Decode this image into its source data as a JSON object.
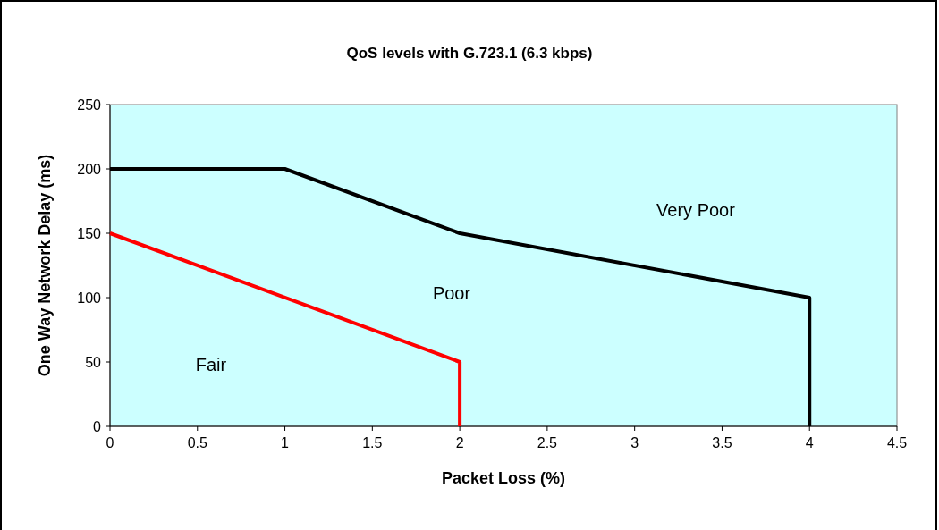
{
  "chart_data": {
    "type": "line",
    "title": "QoS levels with G.723.1 (6.3 kbps)",
    "xlabel": "Packet Loss (%)",
    "ylabel": "One Way Network Delay (ms)",
    "series": [
      {
        "color": "#000000",
        "x": [
          0,
          1,
          2,
          4,
          4
        ],
        "values": [
          200,
          200,
          150,
          100,
          0
        ]
      },
      {
        "color": "#ff0000",
        "x": [
          0,
          2,
          2
        ],
        "values": [
          150,
          50,
          0
        ]
      }
    ],
    "xlim": [
      0,
      4.5
    ],
    "xticks": [
      0,
      0.5,
      1,
      1.5,
      2,
      2.5,
      3,
      3.5,
      4,
      4.5
    ],
    "ylim": [
      0,
      250
    ],
    "yticks": [
      0,
      50,
      100,
      150,
      200,
      250
    ],
    "grid": false,
    "marker": "none",
    "line_style": "solid",
    "annotations": [
      "Very Poor",
      "Poor",
      "Fair"
    ]
  }
}
